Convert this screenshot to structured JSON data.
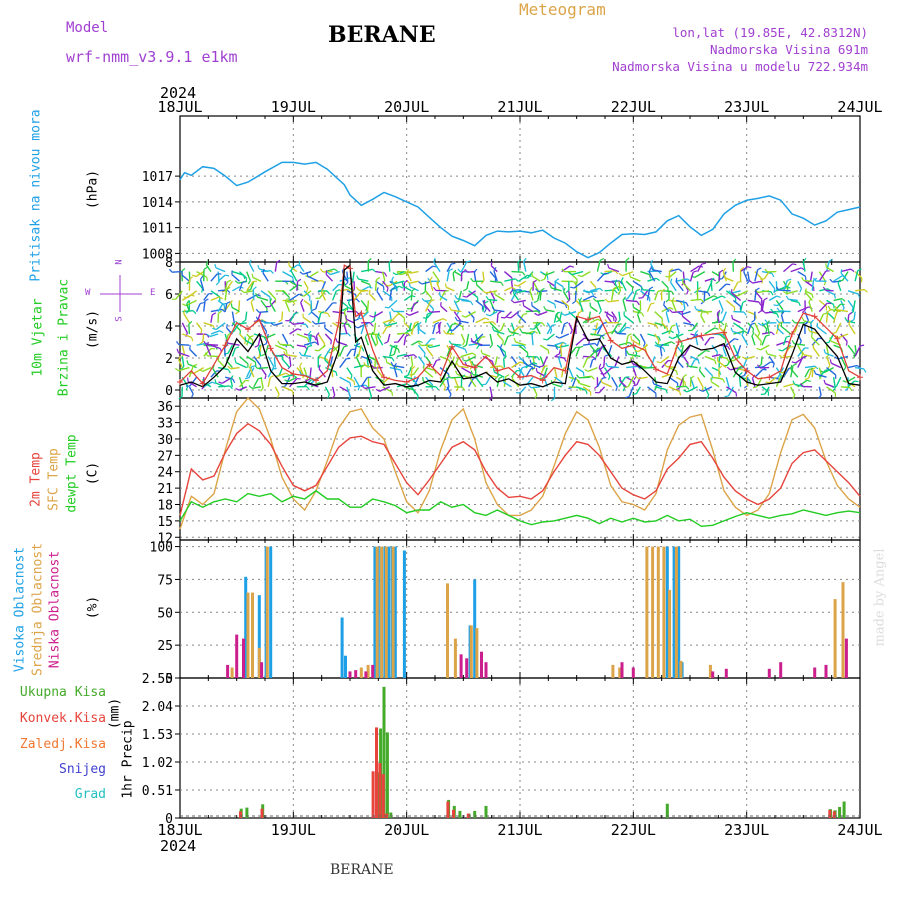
{
  "header": {
    "model_label": "Model",
    "model_name": "wrf-nmm_v3.9.1 e1km",
    "station": "BERANE",
    "meteogram": "Meteogram",
    "coords": "lon,lat (19.85E, 42.8312N)",
    "elevation": "Nadmorska Visina 691m",
    "model_elevation": "Nadmorska Visina u modelu 722.934m",
    "credit": "made by Angel",
    "bottom_station": "BERANE"
  },
  "colors": {
    "pressure": "#1ea0e6",
    "wind_speed": "#000000",
    "wind_gust": "#e0403a",
    "temp2m": "#e6443c",
    "sfc": "#dca448",
    "dew": "#22cc22",
    "high": "#1ea0e6",
    "mid": "#dca448",
    "low": "#cc1f8e",
    "total": "#44aa2a",
    "convective": "#e6443c",
    "frozen": "#f07830",
    "snow": "#4040d0",
    "graupel": "#22c0c0",
    "barb_colors": [
      "#2266dd",
      "#22b8e0",
      "#8822cc",
      "#22cc44",
      "#88dd22",
      "#cccc22",
      "#00cc88"
    ]
  },
  "time_axis": {
    "year_top": "2024",
    "year_bottom": "2024",
    "labels": [
      "18JUL",
      "19JUL",
      "20JUL",
      "21JUL",
      "22JUL",
      "23JUL",
      "24JUL"
    ]
  },
  "chart_data": [
    {
      "type": "line",
      "panel": "pressure",
      "ylabel": "Pritisak na nivou mora",
      "unit": "(hPa)",
      "yticks": [
        "1017",
        "1014",
        "1011",
        "1008"
      ],
      "ylim": [
        1007,
        1024
      ],
      "x": [
        0,
        0.04,
        0.1,
        0.2,
        0.3,
        0.4,
        0.5,
        0.6,
        0.75,
        0.9,
        1.0,
        1.1,
        1.2,
        1.3,
        1.45,
        1.5,
        1.6,
        1.7,
        1.8,
        1.9,
        2.0,
        2.1,
        2.2,
        2.3,
        2.4,
        2.5,
        2.6,
        2.7,
        2.8,
        2.9,
        3.0,
        3.1,
        3.2,
        3.3,
        3.4,
        3.5,
        3.6,
        3.7,
        3.8,
        3.9,
        4.0,
        4.1,
        4.2,
        4.3,
        4.4,
        4.5,
        4.6,
        4.7,
        4.8,
        4.9,
        5.0,
        5.1,
        5.2,
        5.3,
        5.4,
        5.5,
        5.6,
        5.7,
        5.8,
        5.9,
        6.0
      ],
      "y": [
        1016.6,
        1017.4,
        1017.1,
        1018.1,
        1017.9,
        1017.0,
        1015.9,
        1016.3,
        1017.5,
        1018.6,
        1018.6,
        1018.4,
        1018.6,
        1017.8,
        1016.0,
        1014.8,
        1013.6,
        1014.3,
        1015.1,
        1014.6,
        1014.0,
        1013.4,
        1012.2,
        1011.0,
        1010.0,
        1009.5,
        1008.9,
        1010.1,
        1010.6,
        1010.5,
        1010.6,
        1010.4,
        1010.7,
        1009.8,
        1009.2,
        1008.2,
        1007.5,
        1008.1,
        1009.2,
        1010.2,
        1010.3,
        1010.2,
        1010.5,
        1011.8,
        1012.4,
        1011.1,
        1010.1,
        1010.8,
        1012.6,
        1013.6,
        1014.2,
        1014.4,
        1014.7,
        1014.2,
        1012.6,
        1012.1,
        1011.3,
        1011.8,
        1012.8,
        1013.1,
        1013.4
      ]
    },
    {
      "type": "line",
      "panel": "wind",
      "ylabel": "10m Vjetar",
      "ylabel2": "Brzina i Pravac",
      "unit": "(m/s)",
      "compass": "N",
      "compass_s": "S",
      "compass_w": "W",
      "compass_e": "E",
      "yticks": [
        "8",
        "6",
        "4",
        "2",
        "0"
      ],
      "ylim": [
        -0.5,
        8
      ],
      "x": [
        0,
        0.1,
        0.2,
        0.3,
        0.4,
        0.5,
        0.6,
        0.7,
        0.8,
        0.9,
        1.0,
        1.1,
        1.2,
        1.3,
        1.4,
        1.45,
        1.5,
        1.55,
        1.6,
        1.7,
        1.8,
        1.9,
        2.0,
        2.1,
        2.2,
        2.3,
        2.4,
        2.5,
        2.6,
        2.7,
        2.8,
        2.9,
        3.0,
        3.1,
        3.2,
        3.3,
        3.4,
        3.5,
        3.6,
        3.7,
        3.8,
        3.9,
        4.0,
        4.1,
        4.2,
        4.3,
        4.4,
        4.5,
        4.6,
        4.7,
        4.8,
        4.9,
        5.0,
        5.1,
        5.2,
        5.3,
        5.4,
        5.5,
        5.6,
        5.7,
        5.8,
        5.9,
        6.0
      ],
      "speed": [
        0.3,
        0.5,
        0.2,
        0.8,
        1.5,
        3.2,
        2.4,
        3.5,
        1.2,
        0.4,
        0.4,
        0.5,
        0.3,
        0.5,
        2.5,
        7.5,
        7.8,
        3.0,
        3.3,
        1.2,
        0.3,
        0.4,
        0.2,
        0.3,
        0.6,
        0.5,
        1.8,
        0.7,
        0.8,
        1.1,
        0.5,
        0.7,
        0.3,
        0.4,
        0.2,
        0.5,
        0.4,
        4.5,
        3.1,
        3.2,
        2.0,
        1.6,
        1.8,
        1.2,
        0.5,
        0.4,
        2.0,
        2.8,
        2.5,
        2.6,
        2.9,
        1.1,
        0.5,
        0.3,
        0.4,
        0.5,
        2.2,
        4.1,
        3.8,
        2.9,
        2.1,
        0.4,
        0.3
      ],
      "gust": [
        0.5,
        1.2,
        0.4,
        1.6,
        2.8,
        4.2,
        3.8,
        4.4,
        2.6,
        1.4,
        1.0,
        0.9,
        0.6,
        1.2,
        4.2,
        7.8,
        7.6,
        4.6,
        4.8,
        2.5,
        0.8,
        0.6,
        0.5,
        0.8,
        1.6,
        0.9,
        2.7,
        1.6,
        1.4,
        2.1,
        1.2,
        1.4,
        0.8,
        0.9,
        0.6,
        1.4,
        1.2,
        4.6,
        4.4,
        4.6,
        3.1,
        2.6,
        2.8,
        2.5,
        1.3,
        1.0,
        3.0,
        3.2,
        3.4,
        3.5,
        3.6,
        2.0,
        1.2,
        0.7,
        0.8,
        1.2,
        3.5,
        4.8,
        4.6,
        3.9,
        3.2,
        1.2,
        0.8
      ]
    },
    {
      "type": "line",
      "panel": "temperature",
      "ylabel": "2m Temp",
      "ylabel2": "SFC Temp",
      "ylabel3": "dewpt Temp",
      "unit": "(C)",
      "yticks": [
        "36",
        "33",
        "30",
        "27",
        "24",
        "21",
        "18",
        "15",
        "12"
      ],
      "ylim": [
        11.5,
        37.5
      ],
      "x": [
        0,
        0.1,
        0.2,
        0.3,
        0.4,
        0.5,
        0.6,
        0.7,
        0.8,
        0.9,
        1.0,
        1.1,
        1.2,
        1.3,
        1.4,
        1.5,
        1.6,
        1.7,
        1.8,
        1.9,
        2.0,
        2.1,
        2.2,
        2.3,
        2.4,
        2.5,
        2.6,
        2.7,
        2.8,
        2.9,
        3.0,
        3.1,
        3.2,
        3.3,
        3.4,
        3.5,
        3.6,
        3.7,
        3.8,
        3.9,
        4.0,
        4.1,
        4.2,
        4.3,
        4.4,
        4.5,
        4.6,
        4.7,
        4.8,
        4.9,
        5.0,
        5.1,
        5.2,
        5.3,
        5.4,
        5.5,
        5.6,
        5.7,
        5.8,
        5.9,
        6.0
      ],
      "t2m": [
        16.0,
        24.5,
        22.5,
        23.2,
        27.5,
        31.0,
        32.8,
        31.5,
        29.0,
        25.0,
        21.5,
        20.5,
        21.5,
        25.0,
        28.5,
        30.2,
        30.5,
        29.5,
        29.0,
        25.5,
        22.0,
        19.8,
        22.5,
        25.5,
        28.5,
        29.5,
        28.0,
        24.0,
        21.0,
        19.3,
        19.5,
        19.0,
        20.5,
        24.0,
        27.0,
        29.5,
        29.0,
        27.0,
        24.0,
        21.0,
        19.8,
        19.0,
        20.5,
        24.5,
        26.5,
        29.0,
        29.5,
        26.5,
        23.0,
        20.5,
        19.0,
        18.0,
        19.0,
        21.0,
        25.5,
        27.5,
        28.0,
        26.0,
        24.0,
        22.0,
        19.5
      ],
      "sfc": [
        13.5,
        19.5,
        18.0,
        20.0,
        28.0,
        35.0,
        37.5,
        35.5,
        30.0,
        23.0,
        19.0,
        17.0,
        20.5,
        26.0,
        32.0,
        35.0,
        35.5,
        32.0,
        30.0,
        24.0,
        18.5,
        16.5,
        20.5,
        28.0,
        33.5,
        35.5,
        30.0,
        22.0,
        18.0,
        16.0,
        16.0,
        17.0,
        19.5,
        25.0,
        31.0,
        35.0,
        33.5,
        28.5,
        21.5,
        18.5,
        18.0,
        17.0,
        20.0,
        28.0,
        32.5,
        34.0,
        34.5,
        28.0,
        20.5,
        17.5,
        16.0,
        17.0,
        20.0,
        27.5,
        33.5,
        34.5,
        32.0,
        26.0,
        21.5,
        19.0,
        17.5
      ],
      "dew": [
        15.0,
        18.5,
        17.5,
        18.5,
        19.0,
        18.5,
        20.0,
        19.5,
        20.0,
        18.5,
        19.5,
        19.0,
        20.5,
        19.0,
        19.0,
        17.5,
        17.5,
        19.0,
        18.5,
        17.8,
        16.5,
        17.0,
        17.0,
        18.5,
        17.5,
        18.0,
        16.5,
        16.0,
        17.0,
        16.0,
        15.0,
        14.3,
        14.8,
        15.0,
        15.5,
        16.0,
        15.5,
        14.5,
        15.5,
        14.8,
        15.5,
        14.8,
        15.0,
        16.0,
        15.0,
        15.3,
        14.0,
        14.2,
        15.0,
        15.8,
        16.5,
        16.0,
        15.5,
        16.0,
        16.3,
        17.0,
        16.5,
        16.0,
        16.5,
        16.8,
        16.5
      ]
    },
    {
      "type": "bar",
      "panel": "clouds",
      "ylabel": "Visoka Oblacnost",
      "ylabel2": "Srednja Oblacnost",
      "ylabel3": "Niska Oblacnost",
      "unit": "(%)",
      "yticks": [
        "100",
        "75",
        "50",
        "25",
        "0"
      ],
      "ylim": [
        0,
        105
      ],
      "series": [
        {
          "key": "high",
          "x": [
            0.58,
            0.7,
            0.76,
            0.8,
            1.43,
            1.46,
            1.72,
            1.75,
            1.78,
            1.81,
            1.84,
            1.87,
            1.9,
            1.98,
            2.56,
            2.6,
            4.3,
            4.36,
            4.4,
            4.43
          ],
          "values": [
            77,
            63,
            100,
            100,
            46,
            17,
            100,
            100,
            100,
            100,
            100,
            100,
            100,
            97,
            40,
            75,
            100,
            100,
            100,
            12
          ]
        },
        {
          "key": "mid",
          "x": [
            0.46,
            0.6,
            0.64,
            0.7,
            0.77,
            1.6,
            1.66,
            1.74,
            1.78,
            1.82,
            1.88,
            2.36,
            2.43,
            2.57,
            2.62,
            3.82,
            3.88,
            4.12,
            4.17,
            4.22,
            4.27,
            4.32,
            4.38,
            4.42,
            4.68,
            5.78,
            5.85
          ],
          "values": [
            8,
            65,
            65,
            23,
            100,
            8,
            10,
            100,
            100,
            100,
            100,
            72,
            30,
            40,
            38,
            10,
            8,
            100,
            100,
            100,
            100,
            67,
            100,
            13,
            10,
            60,
            73
          ]
        },
        {
          "key": "low",
          "x": [
            0.42,
            0.5,
            0.56,
            0.72,
            1.5,
            1.55,
            1.64,
            1.7,
            2.48,
            2.53,
            2.66,
            2.7,
            3.9,
            4.0,
            4.7,
            4.82,
            5.2,
            5.3,
            5.6,
            5.7,
            5.88
          ],
          "values": [
            10,
            33,
            30,
            12,
            5,
            6,
            5,
            10,
            18,
            15,
            20,
            12,
            12,
            8,
            5,
            7,
            7,
            12,
            8,
            10,
            30
          ]
        }
      ]
    },
    {
      "type": "bar",
      "panel": "precip",
      "ylabel": "1hr Precip",
      "unit": "(mm)",
      "legend": [
        "Ukupna Kisa",
        "Konvek.Kisa",
        "Zaledj.Kisa",
        "Snijeg",
        "Grad"
      ],
      "yticks": [
        "2.55",
        "2.04",
        "1.53",
        "1.02",
        "0.51",
        "0"
      ],
      "ylim": [
        0,
        2.55
      ],
      "series": [
        {
          "key": "total",
          "x": [
            0.54,
            0.59,
            0.73,
            1.74,
            1.77,
            1.8,
            1.83,
            1.86,
            2.37,
            2.42,
            2.47,
            2.55,
            2.6,
            2.7,
            4.3,
            5.74,
            5.78,
            5.82,
            5.86
          ],
          "values": [
            0.17,
            0.19,
            0.25,
            0.83,
            1.63,
            2.39,
            1.56,
            0.1,
            0.33,
            0.22,
            0.13,
            0.08,
            0.13,
            0.22,
            0.26,
            0.16,
            0.14,
            0.2,
            0.3
          ]
        },
        {
          "key": "convective",
          "x": [
            0.56,
            0.75,
            1.73,
            1.76,
            1.79,
            1.82,
            1.85,
            2.39,
            2.44,
            2.57,
            5.76,
            5.8
          ],
          "values": [
            0.12,
            0.17,
            0.85,
            1.65,
            1.0,
            0.8,
            0.08,
            0.3,
            0.15,
            0.08,
            0.15,
            0.12
          ]
        }
      ]
    }
  ]
}
